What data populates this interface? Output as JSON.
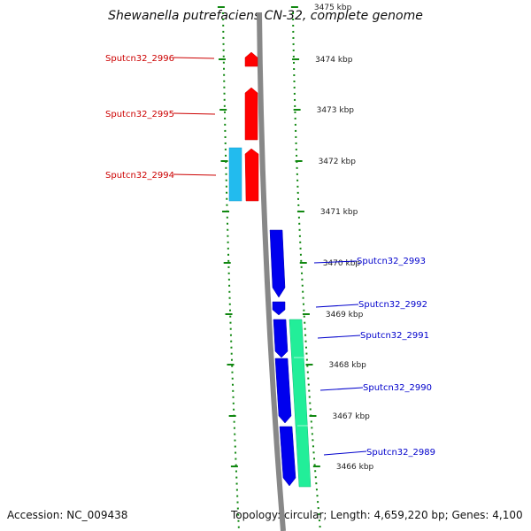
{
  "title": "Shewanella putrefaciens CN-32, complete genome",
  "accession": "Accession: NC_009438",
  "summary": "Topology: circular; Length: 4,659,220 bp; Genes: 4,100",
  "colors": {
    "forward_cds": "#ff0000",
    "reverse_cds": "#0000ee",
    "forward_other": "#22bbee",
    "reverse_other": "#22ee99",
    "label_forward": "#cc0000",
    "label_reverse": "#0000cc",
    "backbone": "#888888",
    "ruler": "#118811"
  },
  "ticks": [
    "3475 kbp",
    "3474 kbp",
    "3473 kbp",
    "3472 kbp",
    "3471 kbp",
    "3470 kbp",
    "3469 kbp",
    "3468 kbp",
    "3467 kbp",
    "3466 kbp"
  ],
  "genes": [
    {
      "label": "Sputcn32_2996",
      "strand": "forward"
    },
    {
      "label": "Sputcn32_2995",
      "strand": "forward"
    },
    {
      "label": "Sputcn32_2994",
      "strand": "forward"
    },
    {
      "label": "Sputcn32_2993",
      "strand": "reverse"
    },
    {
      "label": "Sputcn32_2992",
      "strand": "reverse"
    },
    {
      "label": "Sputcn32_2991",
      "strand": "reverse"
    },
    {
      "label": "Sputcn32_2990",
      "strand": "reverse"
    },
    {
      "label": "Sputcn32_2989",
      "strand": "reverse"
    }
  ]
}
